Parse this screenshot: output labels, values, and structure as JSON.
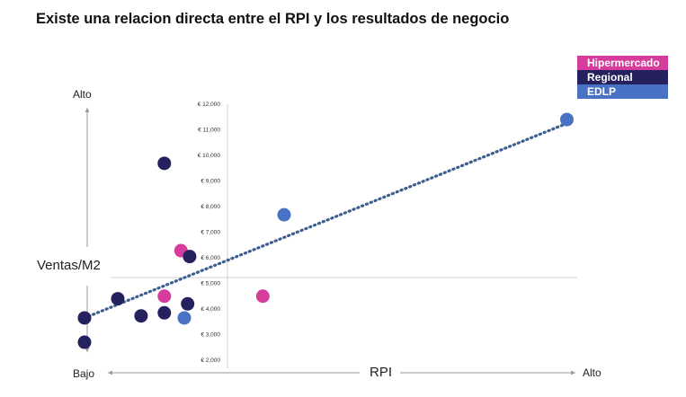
{
  "title": "Existe una relacion directa entre el RPI y los resultados de negocio",
  "axis_labels": {
    "y_title": "Ventas/M2",
    "y_high": "Alto",
    "y_low": "Bajo",
    "x_title": "RPI",
    "x_high": "Alto"
  },
  "legend": [
    {
      "name": "Hipermercado",
      "color": "#d63c9b"
    },
    {
      "name": "Regional",
      "color": "#25215e"
    },
    {
      "name": "EDLP",
      "color": "#4a72c4"
    }
  ],
  "chart_data": {
    "type": "scatter",
    "ylim": [
      2000,
      12000
    ],
    "yticks": [
      "€ 2,000",
      "€ 3,000",
      "€ 4,000",
      "€ 5,000",
      "€ 6,000",
      "€ 7,000",
      "€ 8,000",
      "€ 9,000",
      "€ 10,000",
      "€ 11,000",
      "€ 12,000"
    ],
    "trendline": "dotted linear",
    "series": [
      {
        "name": "Hipermercado",
        "color": "#d63c9b",
        "points": [
          [
            0.245,
            6280
          ],
          [
            0.22,
            4500
          ],
          [
            0.368,
            4500
          ]
        ]
      },
      {
        "name": "Regional",
        "color": "#25215e",
        "points": [
          [
            0.22,
            9690
          ],
          [
            0.258,
            6050
          ],
          [
            0.1,
            3650
          ],
          [
            0.1,
            2700
          ],
          [
            0.15,
            4400
          ],
          [
            0.185,
            3730
          ],
          [
            0.22,
            3850
          ],
          [
            0.255,
            4200
          ]
        ]
      },
      {
        "name": "EDLP",
        "color": "#4a72c4",
        "points": [
          [
            0.4,
            7680
          ],
          [
            0.825,
            11400
          ],
          [
            0.25,
            3650
          ]
        ]
      }
    ]
  }
}
